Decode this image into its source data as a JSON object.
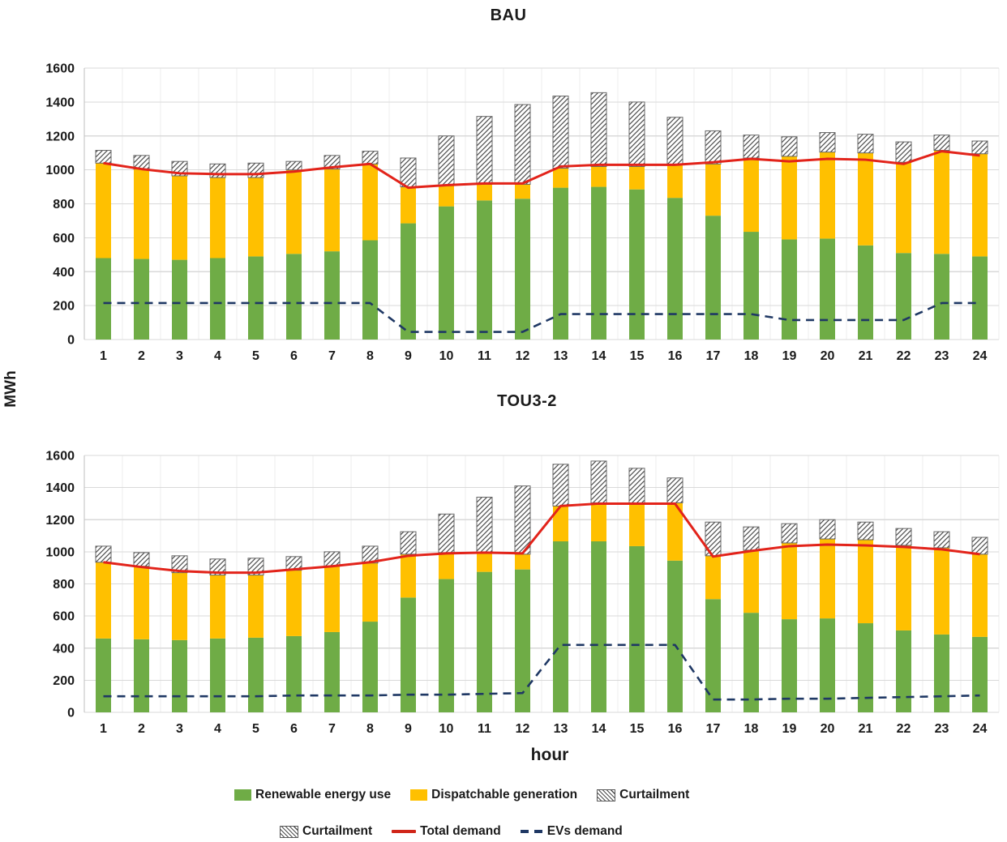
{
  "figure": {
    "ylabel": "MWh",
    "xlabel": "hour"
  },
  "legend": {
    "row1": [
      {
        "label": "Renewable energy use",
        "swatch": "green"
      },
      {
        "label": "Dispatchable generation",
        "swatch": "yellow"
      },
      {
        "label": "Curtailment",
        "swatch": "hatch"
      }
    ],
    "row2": [
      {
        "label": "Curtailment",
        "swatch": "hatch"
      },
      {
        "label": "Total demand",
        "swatch": "redline"
      },
      {
        "label": "EVs demand",
        "swatch": "navydash"
      }
    ]
  },
  "colors": {
    "renewable": "#6fac46",
    "dispatchable": "#ffc000",
    "hatch_stroke": "#4d4d4d",
    "hatch_border": "#666666",
    "total_demand": "#e2231a",
    "evs_demand": "#1f3864",
    "gridline": "#d9d9d9",
    "gridline_vertical": "#ededed",
    "axis": "#bfbfbf"
  },
  "chart_data": [
    {
      "type": "bar",
      "subtype": "stacked-bars-with-lines",
      "title": "BAU",
      "xlabel": "hour",
      "ylabel": "MWh",
      "ylim": [
        0,
        1600
      ],
      "ytick_step": 200,
      "grid": true,
      "categories": [
        "1",
        "2",
        "3",
        "4",
        "5",
        "6",
        "7",
        "8",
        "9",
        "10",
        "11",
        "12",
        "13",
        "14",
        "15",
        "16",
        "17",
        "18",
        "19",
        "20",
        "21",
        "22",
        "23",
        "24"
      ],
      "bar_series": [
        {
          "name": "Renewable energy use",
          "style": "green",
          "values": [
            480,
            475,
            470,
            480,
            490,
            505,
            520,
            585,
            685,
            785,
            820,
            830,
            895,
            900,
            885,
            835,
            730,
            635,
            590,
            595,
            555,
            510,
            505,
            490
          ]
        },
        {
          "name": "Dispatchable generation",
          "style": "yellow",
          "values": [
            560,
            530,
            495,
            475,
            465,
            495,
            485,
            450,
            215,
            125,
            95,
            85,
            115,
            120,
            135,
            195,
            305,
            435,
            490,
            510,
            545,
            535,
            610,
            605
          ]
        },
        {
          "name": "Curtailment",
          "style": "hatch",
          "values": [
            75,
            80,
            85,
            80,
            85,
            50,
            80,
            75,
            170,
            290,
            400,
            470,
            425,
            435,
            380,
            280,
            195,
            135,
            115,
            115,
            110,
            120,
            90,
            75
          ]
        }
      ],
      "line_series": [
        {
          "name": "Total demand",
          "style": "solid-red",
          "values": [
            1040,
            1005,
            980,
            975,
            975,
            990,
            1015,
            1035,
            895,
            910,
            920,
            920,
            1020,
            1030,
            1030,
            1030,
            1045,
            1065,
            1050,
            1065,
            1060,
            1035,
            1110,
            1085
          ]
        },
        {
          "name": "EVs demand",
          "style": "dashed-navy",
          "values": [
            215,
            215,
            215,
            215,
            215,
            215,
            215,
            215,
            45,
            45,
            45,
            45,
            150,
            150,
            150,
            150,
            150,
            150,
            115,
            115,
            115,
            115,
            215,
            215
          ]
        }
      ]
    },
    {
      "type": "bar",
      "subtype": "stacked-bars-with-lines",
      "title": "TOU3-2",
      "xlabel": "hour",
      "ylabel": "MWh",
      "ylim": [
        0,
        1600
      ],
      "ytick_step": 200,
      "grid": true,
      "categories": [
        "1",
        "2",
        "3",
        "4",
        "5",
        "6",
        "7",
        "8",
        "9",
        "10",
        "11",
        "12",
        "13",
        "14",
        "15",
        "16",
        "17",
        "18",
        "19",
        "20",
        "21",
        "22",
        "23",
        "24"
      ],
      "bar_series": [
        {
          "name": "Renewable energy use",
          "style": "green",
          "values": [
            460,
            455,
            450,
            460,
            465,
            475,
            500,
            565,
            715,
            830,
            875,
            890,
            1065,
            1065,
            1035,
            945,
            705,
            620,
            580,
            585,
            555,
            510,
            485,
            470
          ]
        },
        {
          "name": "Dispatchable generation",
          "style": "yellow",
          "values": [
            475,
            455,
            420,
            395,
            390,
            410,
            410,
            365,
            270,
            165,
            120,
            95,
            220,
            240,
            270,
            360,
            270,
            390,
            475,
            495,
            520,
            530,
            540,
            515
          ]
        },
        {
          "name": "Curtailment",
          "style": "hatch",
          "values": [
            100,
            85,
            105,
            100,
            105,
            85,
            90,
            105,
            140,
            240,
            345,
            425,
            260,
            260,
            215,
            155,
            210,
            145,
            120,
            120,
            110,
            105,
            100,
            105
          ]
        }
      ],
      "line_series": [
        {
          "name": "Total demand",
          "style": "solid-red",
          "values": [
            935,
            905,
            880,
            870,
            870,
            890,
            910,
            935,
            975,
            990,
            995,
            990,
            1285,
            1300,
            1300,
            1300,
            970,
            1005,
            1035,
            1045,
            1040,
            1030,
            1015,
            985
          ]
        },
        {
          "name": "EVs demand",
          "style": "dashed-navy",
          "values": [
            100,
            100,
            100,
            100,
            100,
            105,
            105,
            105,
            110,
            110,
            115,
            120,
            420,
            420,
            420,
            420,
            80,
            80,
            85,
            85,
            90,
            95,
            100,
            105
          ]
        }
      ]
    }
  ]
}
